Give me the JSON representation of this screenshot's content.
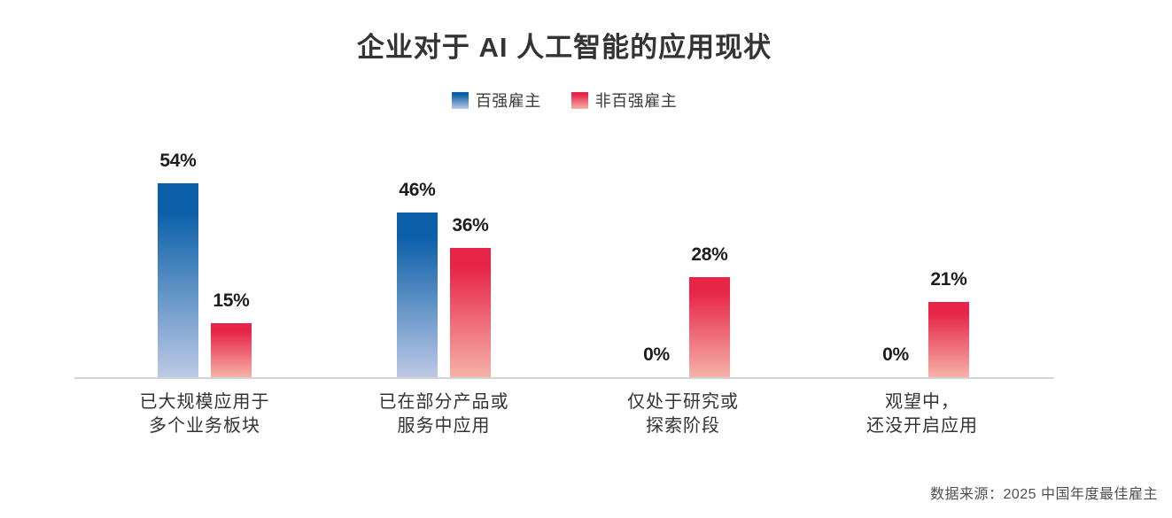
{
  "title": "企业对于 AI 人工智能的应用现状",
  "legend": {
    "items": [
      {
        "label": "百强雇主",
        "color_top": "#0b60a9",
        "color_bottom": "#bdc9e5"
      },
      {
        "label": "非百强雇主",
        "color_top": "#e62549",
        "color_bottom": "#f6b2a8"
      }
    ]
  },
  "chart_data": {
    "type": "bar",
    "title": "企业对于 AI 人工智能的应用现状",
    "categories": [
      "已大规模应用于多个业务板块",
      "已在部分产品或服务中应用",
      "仅处于研究或探索阶段",
      "观望中，还没开启应用"
    ],
    "category_lines": [
      [
        "已大规模应用于",
        "多个业务板块"
      ],
      [
        "已在部分产品或",
        "服务中应用"
      ],
      [
        "仅处于研究或",
        "探索阶段"
      ],
      [
        "观望中，",
        "还没开启应用"
      ]
    ],
    "series": [
      {
        "name": "百强雇主",
        "values": [
          54,
          46,
          0,
          0
        ],
        "gradient_top": "#0b60a9",
        "gradient_bottom": "#bdc9e5"
      },
      {
        "name": "非百强雇主",
        "values": [
          15,
          36,
          28,
          21
        ],
        "gradient_top": "#e62549",
        "gradient_bottom": "#f6b2a8"
      }
    ],
    "value_suffix": "%",
    "data_labels": [
      "54%",
      "46%",
      "0%",
      "0%",
      "15%",
      "36%",
      "28%",
      "21%"
    ],
    "xlabel": "",
    "ylabel": "",
    "ylim": [
      0,
      60
    ],
    "grid": false,
    "legend_position": "top",
    "axis_color": "#d1d4d5"
  },
  "source": "数据来源：2025 中国年度最佳雇主"
}
